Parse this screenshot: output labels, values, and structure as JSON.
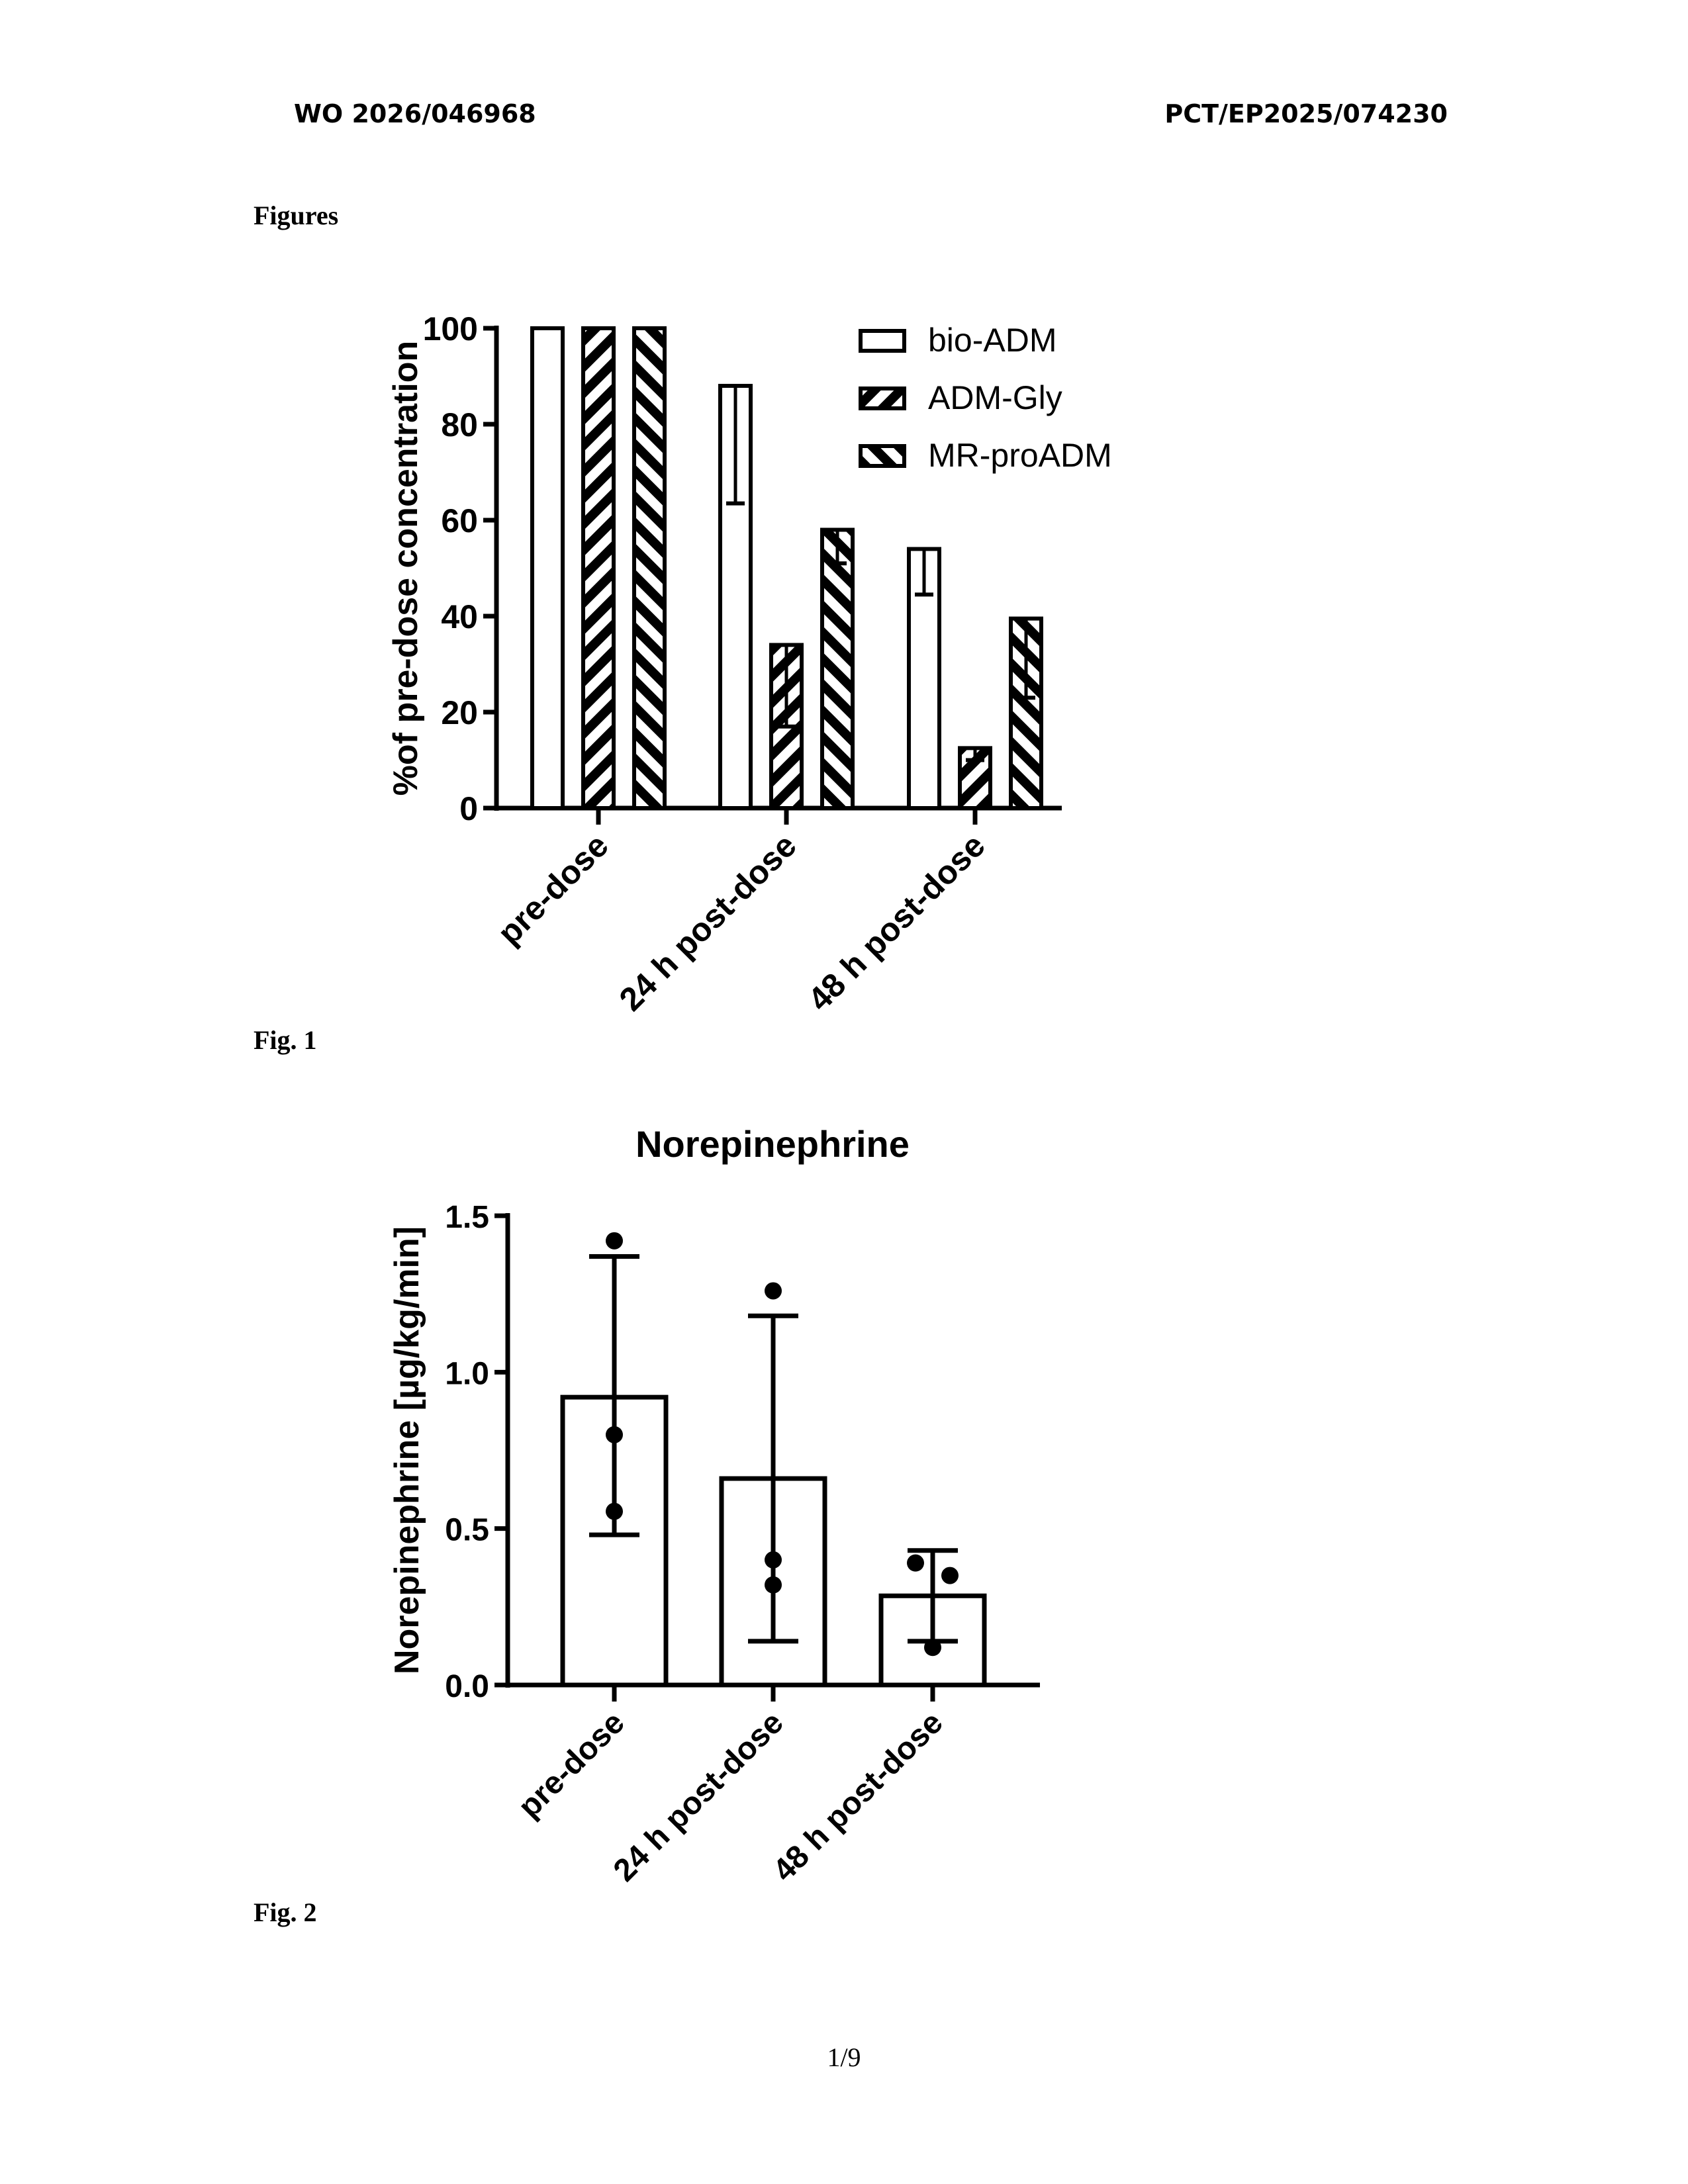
{
  "header": {
    "left": "WO 2026/046968",
    "right": "PCT/EP2025/074230"
  },
  "section_title": "Figures",
  "fig1_caption": "Fig. 1",
  "fig2_caption": "Fig. 2",
  "page_number": "1/9",
  "chart_data": [
    {
      "type": "bar",
      "title": "",
      "categories": [
        "pre-dose",
        "24 h post-dose",
        "48 h post-dose"
      ],
      "ylabel": "%of pre-dose concentration",
      "xlabel": "",
      "ylim": [
        0,
        100
      ],
      "yticks": [
        "0",
        "20",
        "40",
        "60",
        "80",
        "100"
      ],
      "legend_position": "top-right",
      "series": [
        {
          "name": "bio-ADM",
          "pattern": "none",
          "values": [
            100,
            88,
            54
          ],
          "error_low": [
            null,
            63.5,
            44.5
          ]
        },
        {
          "name": "ADM-Gly",
          "pattern": "forward-hatch",
          "values": [
            100,
            34,
            12.5
          ],
          "error_low": [
            null,
            17,
            10
          ]
        },
        {
          "name": "MR-proADM",
          "pattern": "back-hatch",
          "values": [
            100,
            58,
            39.5
          ],
          "error_low": [
            null,
            51,
            23
          ]
        }
      ]
    },
    {
      "type": "bar",
      "title": "Norepinephrine",
      "categories": [
        "pre-dose",
        "24 h post-dose",
        "48 h post-dose"
      ],
      "ylabel": "Norepinephrine [µg/kg/min]",
      "xlabel": "",
      "ylim": [
        0,
        1.5
      ],
      "yticks": [
        "0.0",
        "0.5",
        "1.0",
        "1.5"
      ],
      "values": [
        0.92,
        0.66,
        0.285
      ],
      "error": [
        [
          0.48,
          1.37
        ],
        [
          0.14,
          1.18
        ],
        [
          0.14,
          0.43
        ]
      ],
      "points": [
        [
          1.42,
          0.8,
          0.555
        ],
        [
          1.26,
          0.4,
          0.32
        ],
        [
          0.39,
          0.35,
          0.12
        ]
      ]
    }
  ]
}
